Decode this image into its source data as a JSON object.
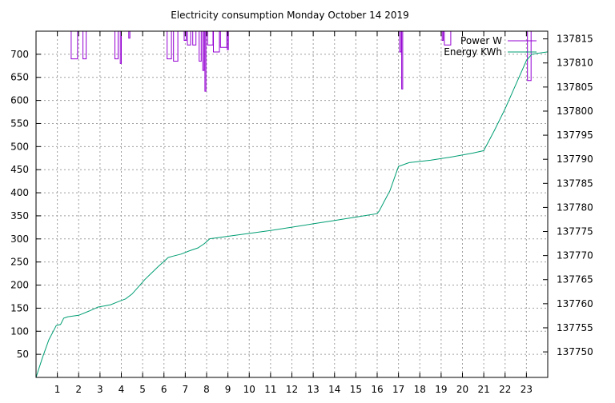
{
  "chart_data": {
    "type": "line",
    "title": "Electricity consumption Monday October 14 2019",
    "xlabel": "",
    "ylabel": "",
    "y2label": "",
    "xlim": [
      0,
      24
    ],
    "ylim": [
      0,
      750
    ],
    "y2lim": [
      137744.7,
      137816.6
    ],
    "x_ticks": [
      1,
      2,
      3,
      4,
      5,
      6,
      7,
      8,
      9,
      10,
      11,
      12,
      13,
      14,
      15,
      16,
      17,
      18,
      19,
      20,
      21,
      22,
      23
    ],
    "y_ticks": [
      50,
      100,
      150,
      200,
      250,
      300,
      350,
      400,
      450,
      500,
      550,
      600,
      650,
      700
    ],
    "y2_ticks": [
      137750,
      137755,
      137760,
      137765,
      137770,
      137775,
      137780,
      137785,
      137790,
      137795,
      137800,
      137805,
      137810,
      137815
    ],
    "grid": true,
    "legend_position": "top-right",
    "colors": {
      "power": "#9400d3",
      "energy": "#009e73",
      "grid": "#a0a0a0",
      "axis": "#000000"
    },
    "series": [
      {
        "name": "Power W",
        "axis": "y1",
        "color": "#9400d3",
        "segments": [
          [
            [
              1.65,
              760
            ],
            [
              1.65,
              690
            ],
            [
              1.95,
              690
            ],
            [
              1.95,
              760
            ]
          ],
          [
            [
              2.2,
              760
            ],
            [
              2.2,
              690
            ],
            [
              2.35,
              690
            ],
            [
              2.35,
              760
            ]
          ],
          [
            [
              3.7,
              760
            ],
            [
              3.7,
              690
            ],
            [
              3.85,
              690
            ],
            [
              3.85,
              760
            ]
          ],
          [
            [
              3.95,
              760
            ],
            [
              3.95,
              680
            ],
            [
              4.0,
              680
            ],
            [
              4.0,
              760
            ]
          ],
          [
            [
              4.35,
              760
            ],
            [
              4.35,
              735
            ],
            [
              4.4,
              735
            ],
            [
              4.4,
              760
            ]
          ],
          [
            [
              6.15,
              760
            ],
            [
              6.15,
              690
            ],
            [
              6.35,
              690
            ],
            [
              6.35,
              760
            ]
          ],
          [
            [
              6.45,
              760
            ],
            [
              6.45,
              685
            ],
            [
              6.65,
              685
            ],
            [
              6.65,
              760
            ]
          ],
          [
            [
              6.95,
              760
            ],
            [
              6.95,
              730
            ],
            [
              7.05,
              730
            ],
            [
              7.05,
              760
            ]
          ],
          [
            [
              7.1,
              760
            ],
            [
              7.1,
              720
            ],
            [
              7.25,
              720
            ],
            [
              7.25,
              760
            ]
          ],
          [
            [
              7.35,
              760
            ],
            [
              7.35,
              720
            ],
            [
              7.5,
              720
            ],
            [
              7.5,
              760
            ]
          ],
          [
            [
              7.65,
              760
            ],
            [
              7.65,
              685
            ],
            [
              7.75,
              685
            ],
            [
              7.75,
              760
            ]
          ],
          [
            [
              7.82,
              760
            ],
            [
              7.82,
              665
            ],
            [
              7.88,
              665
            ],
            [
              7.88,
              760
            ]
          ],
          [
            [
              7.92,
              760
            ],
            [
              7.92,
              620
            ],
            [
              7.97,
              620
            ],
            [
              7.97,
              760
            ]
          ],
          [
            [
              8.05,
              760
            ],
            [
              8.05,
              720
            ],
            [
              8.3,
              720
            ],
            [
              8.3,
              760
            ]
          ],
          [
            [
              8.32,
              760
            ],
            [
              8.32,
              705
            ],
            [
              8.6,
              705
            ],
            [
              8.6,
              760
            ]
          ],
          [
            [
              8.65,
              760
            ],
            [
              8.65,
              715
            ],
            [
              8.95,
              715
            ],
            [
              8.95,
              760
            ]
          ],
          [
            [
              8.97,
              760
            ],
            [
              8.97,
              710
            ],
            [
              9.02,
              710
            ],
            [
              9.02,
              760
            ]
          ],
          [
            [
              17.05,
              760
            ],
            [
              17.05,
              705
            ],
            [
              17.12,
              705
            ],
            [
              17.12,
              760
            ]
          ],
          [
            [
              17.15,
              760
            ],
            [
              17.15,
              625
            ],
            [
              17.2,
              625
            ],
            [
              17.2,
              760
            ]
          ],
          [
            [
              19.05,
              760
            ],
            [
              19.05,
              730
            ],
            [
              19.1,
              730
            ],
            [
              19.1,
              760
            ]
          ],
          [
            [
              19.15,
              760
            ],
            [
              19.15,
              720
            ],
            [
              19.45,
              720
            ],
            [
              19.45,
              760
            ]
          ],
          [
            [
              23.05,
              760
            ],
            [
              23.05,
              643
            ],
            [
              23.22,
              643
            ],
            [
              23.22,
              760
            ]
          ]
        ]
      },
      {
        "name": "Energy KWh",
        "axis": "y2",
        "color": "#009e73",
        "points": [
          [
            0,
            137744.7
          ],
          [
            0.3,
            137748.8
          ],
          [
            0.6,
            137752.5
          ],
          [
            0.95,
            137755.5
          ],
          [
            1.15,
            137755.7
          ],
          [
            1.3,
            137757.0
          ],
          [
            1.5,
            137757.3
          ],
          [
            2.0,
            137757.6
          ],
          [
            2.5,
            137758.5
          ],
          [
            2.9,
            137759.3
          ],
          [
            3.5,
            137759.8
          ],
          [
            3.9,
            137760.5
          ],
          [
            4.2,
            137761.0
          ],
          [
            4.5,
            137762.0
          ],
          [
            4.8,
            137763.5
          ],
          [
            5.1,
            137765.0
          ],
          [
            5.4,
            137766.3
          ],
          [
            5.7,
            137767.6
          ],
          [
            6.0,
            137768.8
          ],
          [
            6.2,
            137769.6
          ],
          [
            6.45,
            137769.9
          ],
          [
            6.8,
            137770.3
          ],
          [
            7.2,
            137771.0
          ],
          [
            7.6,
            137771.6
          ],
          [
            7.9,
            137772.5
          ],
          [
            8.15,
            137773.5
          ],
          [
            8.5,
            137773.7
          ],
          [
            9.0,
            137774.0
          ],
          [
            10.0,
            137774.6
          ],
          [
            11.0,
            137775.2
          ],
          [
            12.0,
            137775.9
          ],
          [
            13.0,
            137776.6
          ],
          [
            14.0,
            137777.3
          ],
          [
            15.0,
            137778.0
          ],
          [
            16.0,
            137778.7
          ],
          [
            16.1,
            137779.3
          ],
          [
            16.3,
            137781.0
          ],
          [
            16.6,
            137783.5
          ],
          [
            17.0,
            137788.5
          ],
          [
            17.5,
            137789.3
          ],
          [
            18.5,
            137789.8
          ],
          [
            19.5,
            137790.5
          ],
          [
            20.5,
            137791.3
          ],
          [
            21.0,
            137791.8
          ],
          [
            21.5,
            137796.0
          ],
          [
            22.0,
            137800.5
          ],
          [
            22.5,
            137805.5
          ],
          [
            23.0,
            137810.5
          ],
          [
            23.25,
            137811.8
          ],
          [
            23.5,
            137812.0
          ],
          [
            24.0,
            137812.3
          ]
        ]
      }
    ]
  }
}
